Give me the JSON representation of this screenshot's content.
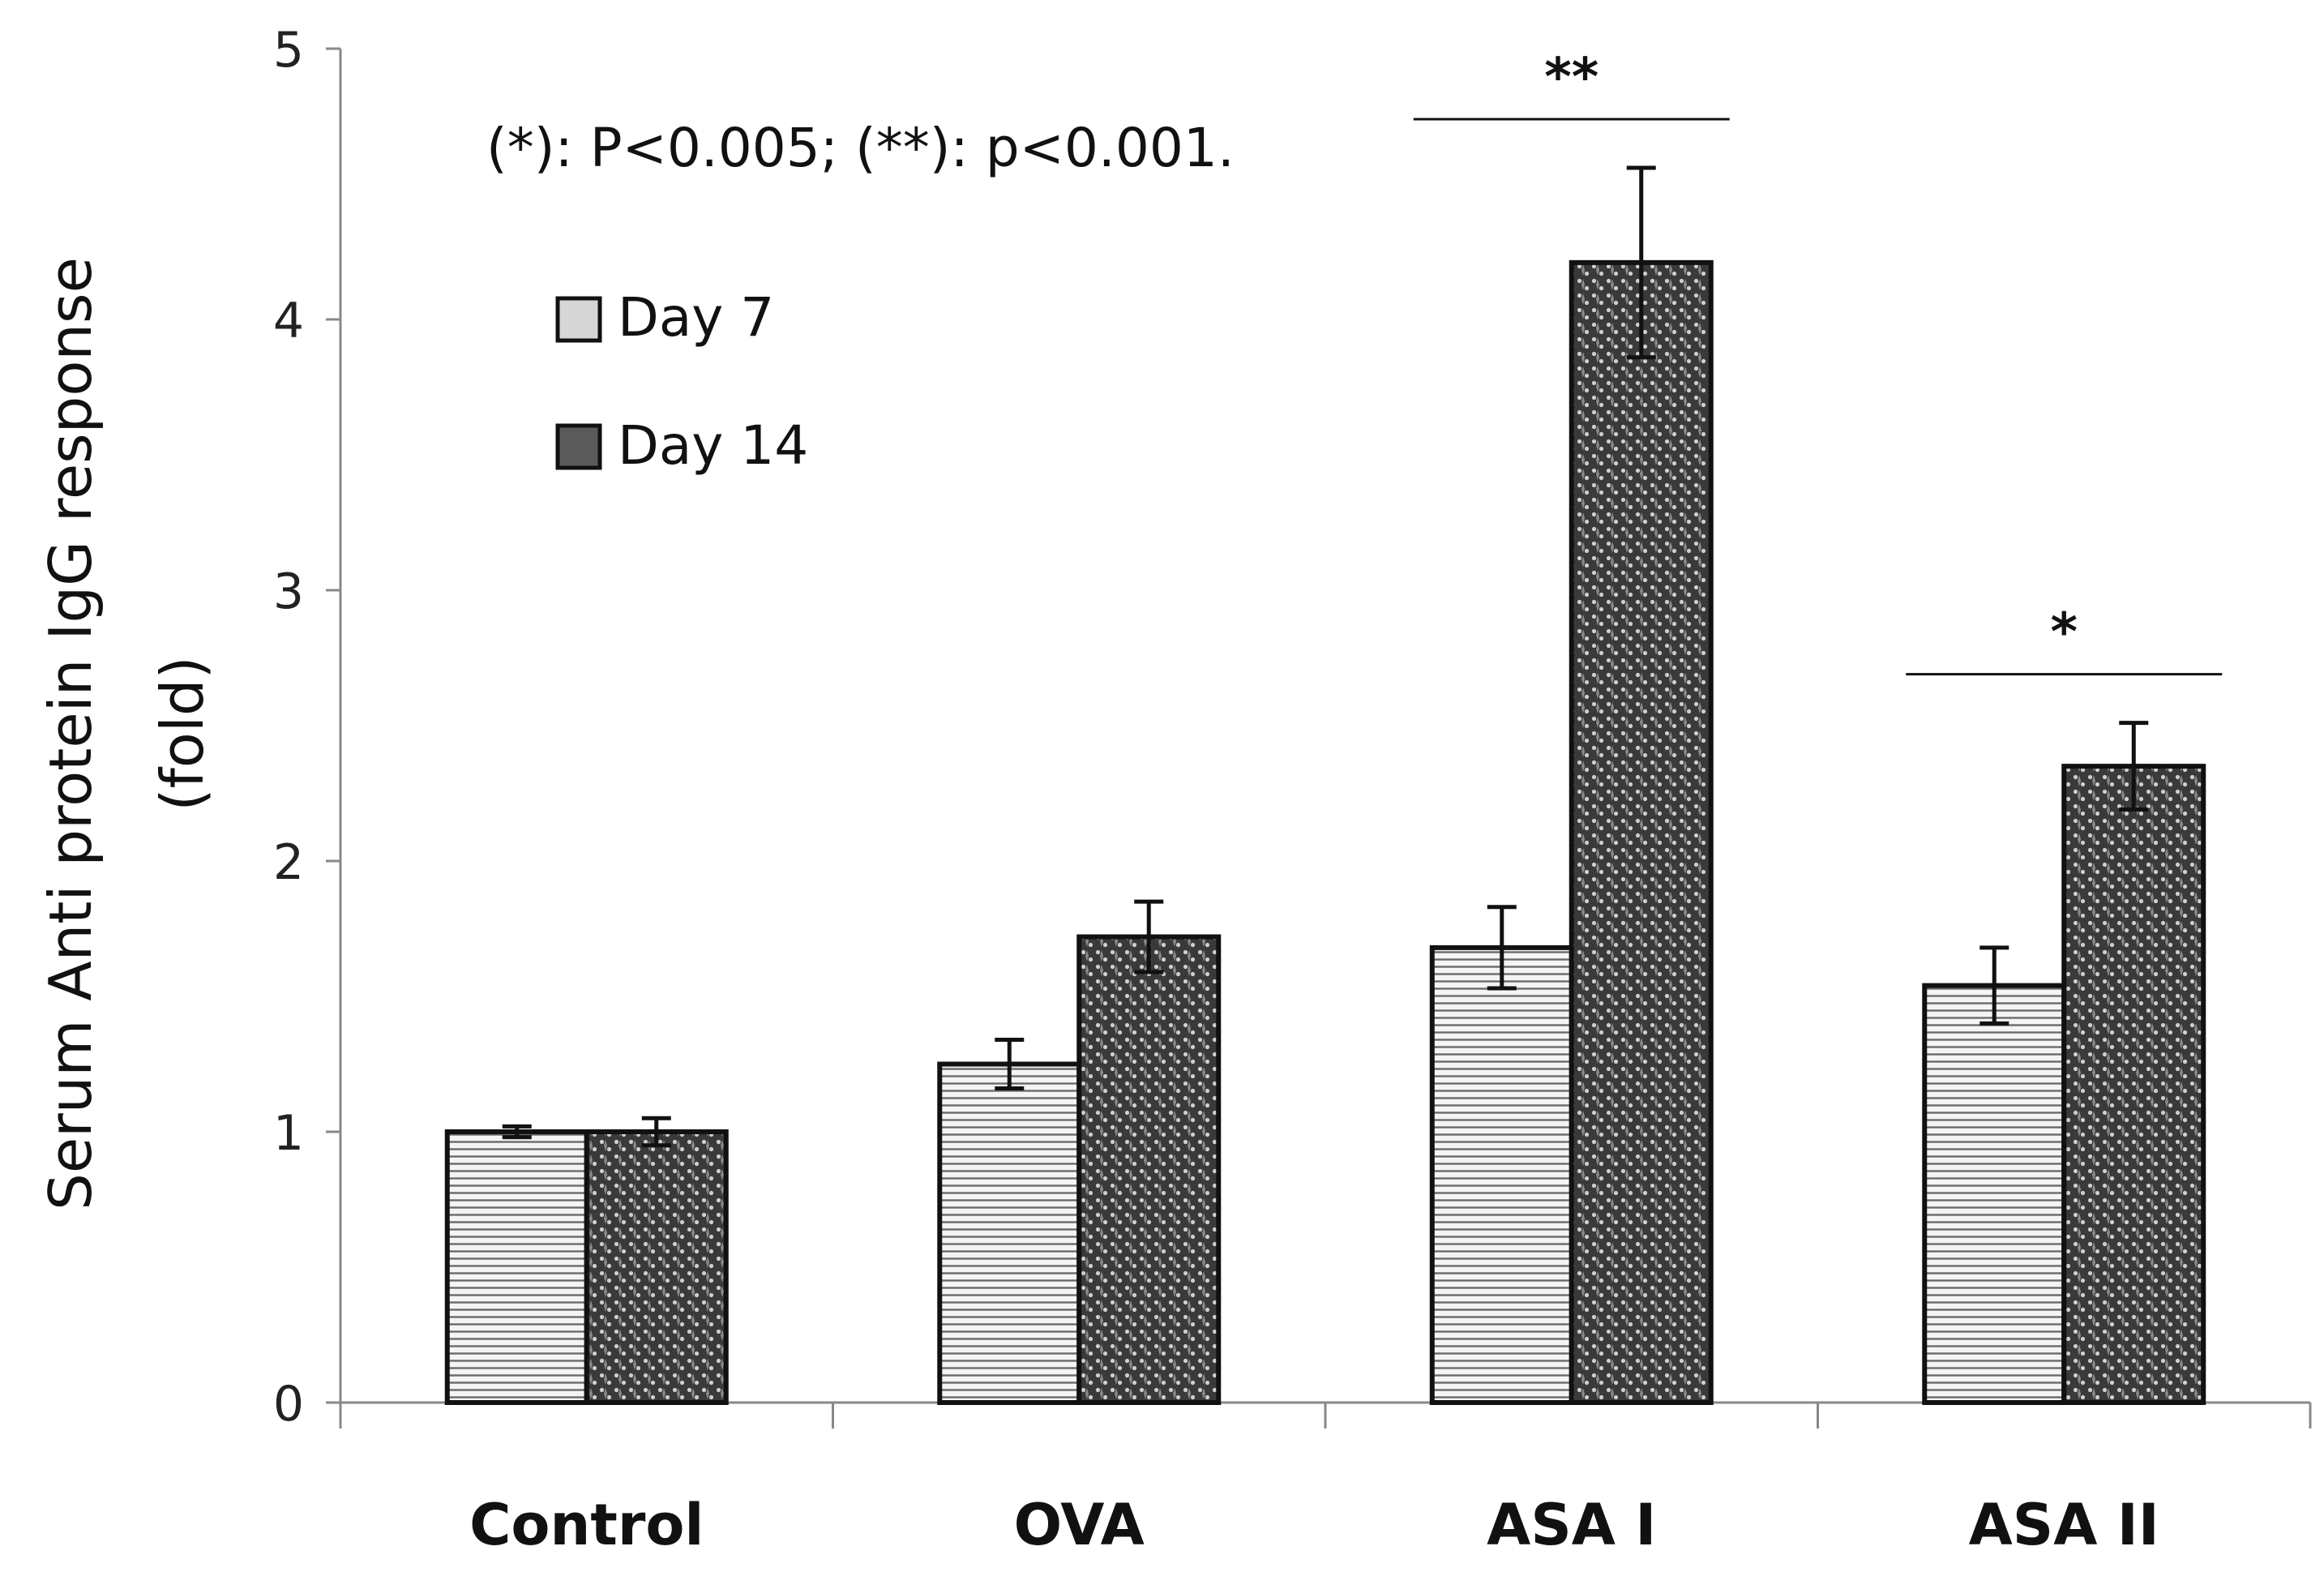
{
  "chart_data": {
    "type": "bar",
    "title": "",
    "xlabel": "",
    "ylabel_line1": "Serum Anti protein IgG response",
    "ylabel_line2": "(fold)",
    "ylim": [
      0,
      5
    ],
    "yticks": [
      "0",
      "1",
      "2",
      "3",
      "4",
      "5"
    ],
    "categories": [
      "Control",
      "OVA",
      "ASA I",
      "ASA II"
    ],
    "series": [
      {
        "name": "Day 7",
        "values": [
          1.0,
          1.25,
          1.68,
          1.54
        ],
        "errors": [
          0.02,
          0.09,
          0.15,
          0.14
        ],
        "pattern": "horizontal-lines",
        "color": "#e8e8e8"
      },
      {
        "name": "Day 14",
        "values": [
          1.0,
          1.72,
          4.21,
          2.35
        ],
        "errors": [
          0.05,
          0.13,
          0.35,
          0.16
        ],
        "pattern": "dense-dots",
        "color": "#555555"
      }
    ],
    "significance": [
      {
        "category": "ASA I",
        "label": "**"
      },
      {
        "category": "ASA II",
        "label": "*"
      }
    ],
    "annotation": "(*): P<0.005; (**): p<0.001.",
    "legend_position": "top-left",
    "grid": false
  }
}
